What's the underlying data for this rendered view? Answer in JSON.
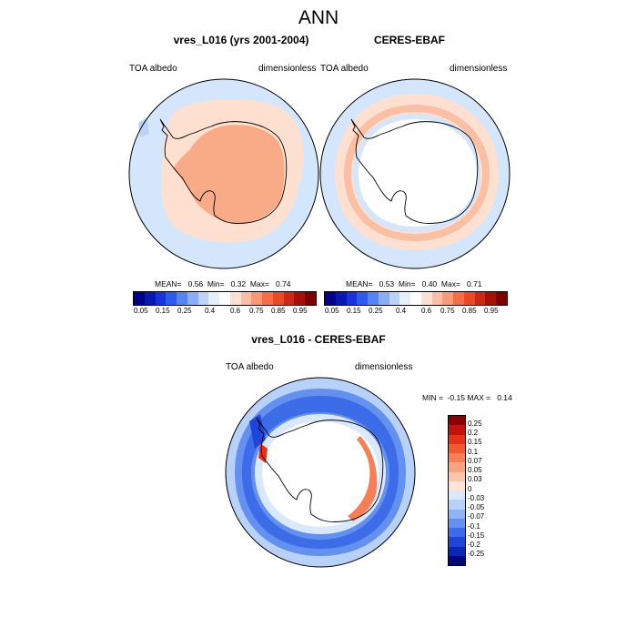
{
  "main_title": "ANN",
  "panels": [
    {
      "title": "vres_L016 (yrs 2001-2004)",
      "variable": "TOA albedo",
      "units": "dimensionless",
      "stats": "MEAN=   0.56  Min=   0.32  Max=   0.74",
      "field": {
        "ocean": "#d3e6fb",
        "ring": "#fde0cf",
        "land": "#f9ab87"
      }
    },
    {
      "title": "CERES-EBAF",
      "variable": "TOA albedo",
      "units": "dimensionless",
      "stats": "MEAN=   0.53  Min=   0.40  Max=   0.71",
      "field": {
        "ocean": "#d3e6fb",
        "ring": "#fde0cf",
        "land": "#ffffff"
      }
    }
  ],
  "diff_panel": {
    "title": "vres_L016 - CERES-EBAF",
    "variable": "TOA albedo",
    "units": "dimensionless",
    "minmax": "MIN =  -0.15 MAX =   0.14"
  },
  "colorbar_abs": {
    "labels": [
      "0.05",
      "0.15",
      "0.25",
      "0.4",
      "0.6",
      "0.75",
      "0.85",
      "0.95"
    ],
    "colors": [
      "#00008a",
      "#0818b2",
      "#1733dd",
      "#2c5ced",
      "#5585f2",
      "#89aef5",
      "#bcd3f8",
      "#e4effc",
      "#ffffff",
      "#fde0cf",
      "#fbc0a4",
      "#f99a76",
      "#f56f46",
      "#ea4a23",
      "#cc2814",
      "#a61009",
      "#7d0000"
    ]
  },
  "colorbar_diff": {
    "labels": [
      "0.25",
      "0.2",
      "0.15",
      "0.1",
      "0.07",
      "0.05",
      "0.03",
      "0",
      "-0.03",
      "-0.05",
      "-0.07",
      "-0.1",
      "-0.15",
      "-0.2",
      "-0.25"
    ],
    "colors": [
      "#8a0000",
      "#c21209",
      "#e5331a",
      "#f4582f",
      "#f77e55",
      "#f9a47f",
      "#fbc6aa",
      "#fde4d6",
      "#d9e8fb",
      "#b7d1f8",
      "#8fb4f3",
      "#6491ef",
      "#3d6ce9",
      "#1d45d8",
      "#0d27b5",
      "#020a7a"
    ]
  }
}
